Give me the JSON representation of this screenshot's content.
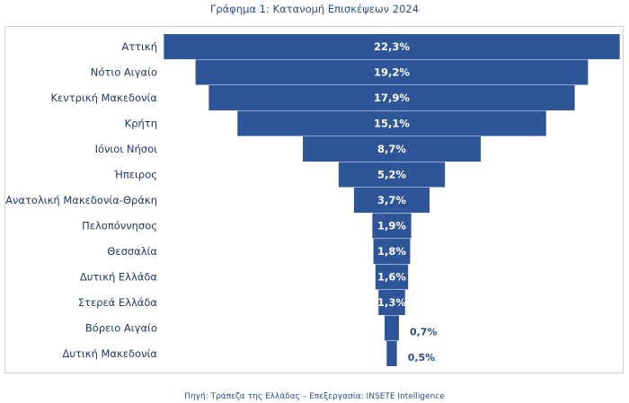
{
  "title": "Γράφημα 1: Κατανομή Επισκέψεων 2024",
  "source": "Πηγή: Τράπεζα της Ελλάδας – Επεξεργασία: INSETE Intelligence",
  "colors": {
    "bar": "#2e5597",
    "text": "#1f3864",
    "label_outside": "#2a4f86"
  },
  "chart_data": {
    "type": "bar",
    "orientation": "horizontal-centered (funnel)",
    "categories": [
      "Αττική",
      "Νότιο Αιγαίο",
      "Κεντρική Μακεδονία",
      "Κρήτη",
      "Ιόνιοι Νήσοι",
      "Ήπειρος",
      "Ανατολική Μακεδονία-Θράκη",
      "Πελοπόννησος",
      "Θεσσαλία",
      "Δυτική Ελλάδα",
      "Στερεά Ελλάδα",
      "Βόρειο Αιγαίο",
      "Δυτική Μακεδονία"
    ],
    "values": [
      22.3,
      19.2,
      17.9,
      15.1,
      8.7,
      5.2,
      3.7,
      1.9,
      1.8,
      1.6,
      1.3,
      0.7,
      0.5
    ],
    "data_labels": [
      "22,3%",
      "19,2%",
      "17,9%",
      "15,1%",
      "8,7%",
      "5,2%",
      "3,7%",
      "1,9%",
      "1,8%",
      "1,6%",
      "1,3%",
      "0,7%",
      "0,5%"
    ],
    "unit": "%",
    "grid": false,
    "legend": "none"
  }
}
